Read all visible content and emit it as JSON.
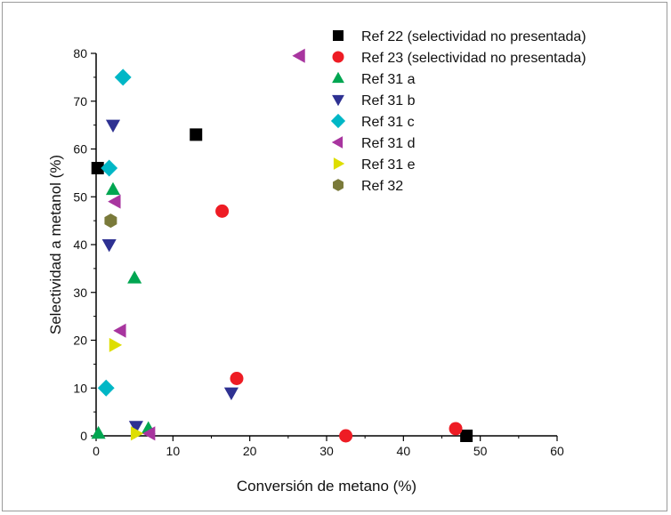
{
  "chart_data": {
    "type": "scatter",
    "title": "",
    "xlabel": "Conversión de metano (%)",
    "ylabel": "Selectividad a metanol (%)",
    "xlim": [
      0,
      60
    ],
    "ylim": [
      0,
      80
    ],
    "x_ticks": [
      0,
      10,
      20,
      30,
      40,
      50,
      60
    ],
    "y_ticks": [
      0,
      10,
      20,
      30,
      40,
      50,
      60,
      70,
      80
    ],
    "legend_position": "top-right",
    "series": [
      {
        "name": "Ref 22 (selectividad no presentada)",
        "marker": "square",
        "color": "#000000",
        "points": [
          [
            0.2,
            56
          ],
          [
            13,
            63
          ],
          [
            48.2,
            0
          ]
        ]
      },
      {
        "name": "Ref 23 (selectividad no presentada)",
        "marker": "circle",
        "color": "#ee1c24",
        "points": [
          [
            16.4,
            47
          ],
          [
            18.3,
            12
          ],
          [
            32.5,
            0
          ],
          [
            46.8,
            1.5
          ]
        ]
      },
      {
        "name": "Ref 31 a",
        "marker": "triangle-up",
        "color": "#00a651",
        "points": [
          [
            0.3,
            0.5
          ],
          [
            2.2,
            51.5
          ],
          [
            5,
            33
          ],
          [
            6.8,
            1.5
          ]
        ]
      },
      {
        "name": "Ref 31 b",
        "marker": "triangle-down",
        "color": "#2e3192",
        "points": [
          [
            2.2,
            65
          ],
          [
            1.7,
            40
          ],
          [
            5.2,
            2
          ],
          [
            17.6,
            9
          ]
        ]
      },
      {
        "name": "Ref 31 c",
        "marker": "diamond",
        "color": "#00b7c6",
        "points": [
          [
            3.5,
            75
          ],
          [
            1.7,
            56
          ],
          [
            1.3,
            10
          ]
        ]
      },
      {
        "name": "Ref 31 d",
        "marker": "triangle-left",
        "color": "#a8359f",
        "points": [
          [
            26.5,
            79.5
          ],
          [
            2.5,
            49
          ],
          [
            3.2,
            22
          ],
          [
            7,
            0.5
          ]
        ]
      },
      {
        "name": "Ref 31 e",
        "marker": "triangle-right",
        "color": "#dede00",
        "points": [
          [
            2.4,
            19
          ],
          [
            5.2,
            0.5
          ]
        ]
      },
      {
        "name": "Ref 32",
        "marker": "hexagon",
        "color": "#7a7a3a",
        "points": [
          [
            1.9,
            45
          ]
        ]
      }
    ]
  }
}
